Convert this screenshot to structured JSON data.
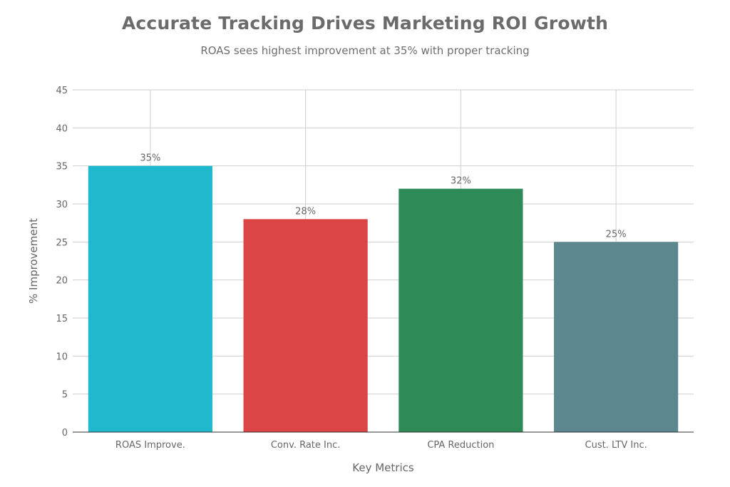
{
  "chart_data": {
    "type": "bar",
    "title": "Accurate Tracking Drives Marketing ROI Growth",
    "subtitle": "ROAS sees highest improvement at 35% with proper tracking",
    "xlabel": "Key Metrics",
    "ylabel": "% Improvement",
    "categories": [
      "ROAS Improve.",
      "Conv. Rate Inc.",
      "CPA Reduction",
      "Cust. LTV Inc."
    ],
    "values": [
      35,
      28,
      32,
      25
    ],
    "data_labels": [
      "35%",
      "28%",
      "32%",
      "25%"
    ],
    "colors": [
      "#1fb8cd",
      "#db4545",
      "#2e8b57",
      "#5d878f"
    ],
    "ylim": [
      0,
      45
    ],
    "yticks": [
      0,
      5,
      10,
      15,
      20,
      25,
      30,
      35,
      40,
      45
    ],
    "grid": true
  }
}
